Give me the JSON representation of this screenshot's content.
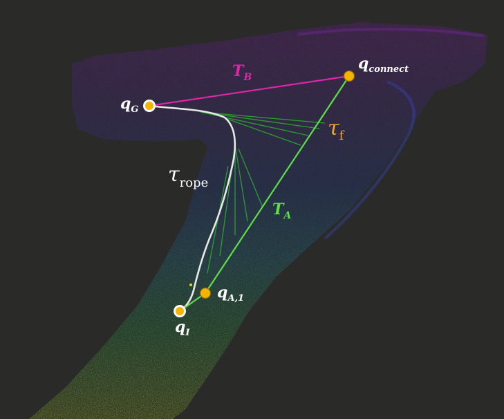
{
  "diagram": {
    "labels": {
      "tree_b": {
        "main": "T",
        "sub": "B"
      },
      "tree_a": {
        "main": "T",
        "sub": "A"
      },
      "q_goal": {
        "main": "q",
        "sub": "G"
      },
      "q_init": {
        "main": "q",
        "sub": "I"
      },
      "q_connect": {
        "main": "q",
        "sub": "connect"
      },
      "q_a1": {
        "main": "q",
        "sub": "A,1"
      },
      "tau_rope": {
        "main": "τ",
        "sub": "rope"
      },
      "tau_f": {
        "main": "τ",
        "sub": "f"
      }
    },
    "colors": {
      "background": "#2a2a28",
      "tree_b": "#e026a8",
      "tree_a": "#5fe04a",
      "rope_path": "#e8e8e8",
      "goal_init_node": "#ffffff",
      "connect_nodes": "#f4b400",
      "tau_f": "#f0a43a",
      "tau_rope": "#ffffff",
      "node_labels": "#ffffff",
      "branch_lines": "#2fb02f"
    }
  }
}
